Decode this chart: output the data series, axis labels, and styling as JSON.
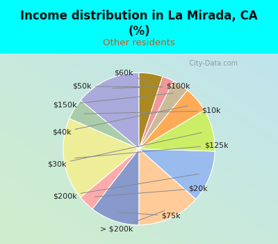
{
  "title": "Income distribution in La Mirada, CA\n(%)",
  "subtitle": "Other residents",
  "title_color": "#111111",
  "subtitle_color": "#cc5522",
  "bg_color": "#00ffff",
  "labels": [
    "$100k",
    "$10k",
    "$125k",
    "$20k",
    "$75k",
    "> $200k",
    "$200k",
    "$30k",
    "$40k",
    "$150k",
    "$50k",
    "$60k"
  ],
  "values": [
    14.0,
    4.5,
    17.5,
    3.5,
    10.5,
    13.5,
    11.0,
    9.0,
    5.5,
    3.5,
    2.5,
    5.0
  ],
  "colors": [
    "#aaaadd",
    "#aaccaa",
    "#eeee99",
    "#ffaaaa",
    "#8899cc",
    "#ffcc99",
    "#99bbee",
    "#ccee66",
    "#ffaa55",
    "#ccbb99",
    "#ee9999",
    "#aa8822"
  ],
  "startangle": 90,
  "label_fontsize": 8,
  "label_color": "#222222",
  "line_color": "#888888"
}
